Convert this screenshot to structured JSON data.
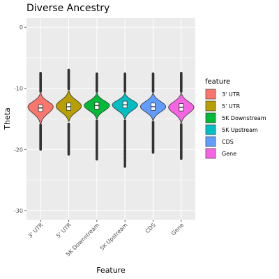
{
  "chart_data": {
    "type": "violin",
    "title": "Diverse Ancestry",
    "xlabel": "Feature",
    "ylabel": "Theta",
    "categories": [
      "3' UTR",
      "5' UTR",
      "5K Downstream",
      "5K Upstream",
      "CDS",
      "Gene"
    ],
    "ylim": [
      -31.5,
      1.5
    ],
    "yticks": [
      0,
      -10,
      -20,
      -30
    ],
    "grid": true,
    "legend": {
      "title": "feature",
      "position": "right",
      "entries": [
        "3' UTR",
        "5' UTR",
        "5K Downstream",
        "5K Upstream",
        "CDS",
        "Gene"
      ]
    },
    "colors": [
      "#F8766D",
      "#B79F00",
      "#00BA38",
      "#00BFC4",
      "#619CFF",
      "#F564E3"
    ],
    "series": [
      {
        "name": "3' UTR",
        "median": -13.2,
        "q1": -13.8,
        "q3": -12.7,
        "whisker_low": -15.8,
        "whisker_high": -10.8,
        "violin_min": -15.8,
        "violin_max": -10.8,
        "peak": -13.0,
        "outlier_low": [
          -16.0,
          -20.0
        ],
        "outlier_high": [
          -10.5,
          -7.5
        ]
      },
      {
        "name": "5' UTR",
        "median": -13.0,
        "q1": -13.6,
        "q3": -12.4,
        "whisker_low": -15.4,
        "whisker_high": -10.4,
        "violin_min": -15.4,
        "violin_max": -10.4,
        "peak": -12.9,
        "outlier_low": [
          -15.8,
          -20.8
        ],
        "outlier_high": [
          -10.1,
          -7.0
        ]
      },
      {
        "name": "5K Downstream",
        "median": -12.8,
        "q1": -13.4,
        "q3": -12.3,
        "whisker_low": -15.0,
        "whisker_high": -10.8,
        "violin_min": -15.0,
        "violin_max": -10.8,
        "peak": -12.8,
        "outlier_low": [
          -15.3,
          -21.6
        ],
        "outlier_high": [
          -10.5,
          -7.6
        ]
      },
      {
        "name": "5K Upstream",
        "median": -12.7,
        "q1": -13.2,
        "q3": -12.1,
        "whisker_low": -15.0,
        "whisker_high": -10.8,
        "violin_min": -15.0,
        "violin_max": -10.8,
        "peak": -12.7,
        "outlier_low": [
          -15.3,
          -22.8
        ],
        "outlier_high": [
          -10.5,
          -7.6
        ]
      },
      {
        "name": "CDS",
        "median": -13.0,
        "q1": -13.6,
        "q3": -12.4,
        "whisker_low": -15.2,
        "whisker_high": -10.8,
        "violin_min": -15.2,
        "violin_max": -10.8,
        "peak": -13.0,
        "outlier_low": [
          -15.5,
          -20.5
        ],
        "outlier_high": [
          -10.5,
          -7.6
        ]
      },
      {
        "name": "Gene",
        "median": -13.1,
        "q1": -13.7,
        "q3": -12.5,
        "whisker_low": -15.6,
        "whisker_high": -10.8,
        "violin_min": -15.6,
        "violin_max": -10.8,
        "peak": -13.1,
        "outlier_low": [
          -15.9,
          -21.5
        ],
        "outlier_high": [
          -10.5,
          -7.5
        ]
      }
    ]
  }
}
